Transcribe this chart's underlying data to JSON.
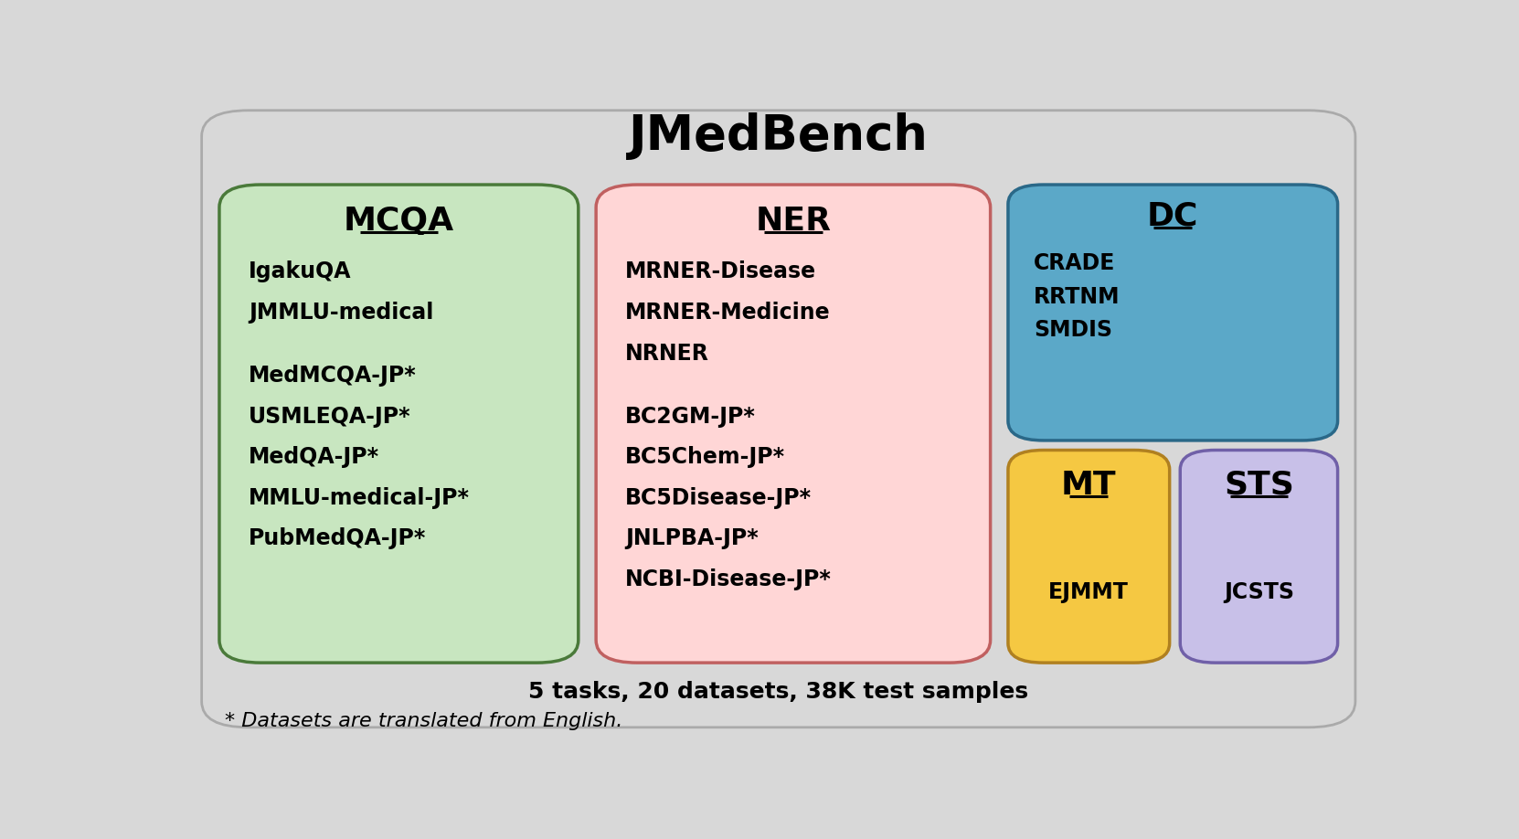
{
  "title": "JMedBench",
  "title_fontsize": 38,
  "background_color": "#d8d8d8",
  "mcqa_color": "#c8e6c0",
  "mcqa_border": "#4a7a3a",
  "ner_color": "#ffd6d6",
  "ner_border": "#c06060",
  "dc_color": "#5ba8c8",
  "dc_border": "#2a6888",
  "mt_color": "#f5c842",
  "mt_border": "#b08020",
  "sts_color": "#c8c0e8",
  "sts_border": "#7060a8",
  "mcqa_title": "MCQA",
  "ner_title": "NER",
  "dc_title": "DC",
  "mt_title": "MT",
  "sts_title": "STS",
  "mcqa_items": [
    "IgakuQA",
    "JMMLU-medical",
    "",
    "MedMCQA-JP*",
    "USMLEQA-JP*",
    "MedQA-JP*",
    "MMLU-medical-JP*",
    "PubMedQA-JP*"
  ],
  "ner_items": [
    "MRNER-Disease",
    "MRNER-Medicine",
    "NRNER",
    "",
    "BC2GM-JP*",
    "BC5Chem-JP*",
    "BC5Disease-JP*",
    "JNLPBA-JP*",
    "NCBI-Disease-JP*"
  ],
  "dc_items": [
    "CRADE",
    "RRTNM",
    "SMDIS"
  ],
  "mt_items": [
    "EJMMT"
  ],
  "sts_items": [
    "JCSTS"
  ],
  "footer": "5 tasks, 20 datasets, 38K test samples",
  "footnote": "* Datasets are translated from English.",
  "footer_fontsize": 18,
  "footnote_fontsize": 16,
  "item_fontsize": 17,
  "section_title_fontsize": 26
}
